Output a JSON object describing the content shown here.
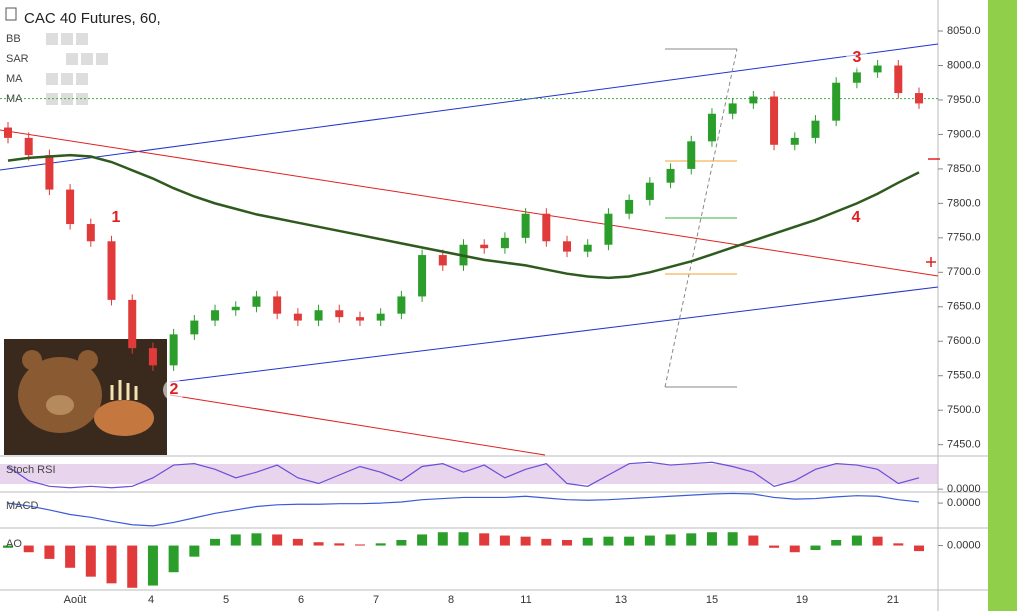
{
  "chart_data": [
    {
      "type": "candlestick",
      "title": "CAC 40 Futures, 60,",
      "indicators": [
        "BB",
        "SAR",
        "MA",
        "MA"
      ],
      "date_labels": [
        "Août",
        "4",
        "5",
        "6",
        "7",
        "8",
        "11",
        "13",
        "15",
        "19",
        "21"
      ],
      "open": [
        7910,
        7895,
        7870,
        7820,
        7770,
        7745,
        7660,
        7590,
        7565,
        7610,
        7630,
        7645,
        7650,
        7665,
        7640,
        7630,
        7645,
        7635,
        7630,
        7640,
        7665,
        7725,
        7710,
        7740,
        7735,
        7750,
        7785,
        7745,
        7730,
        7740,
        7785,
        7805,
        7830,
        7850,
        7890,
        7930,
        7945,
        7955,
        7885,
        7895,
        7920,
        7975,
        7990,
        8000,
        7960
      ],
      "high": [
        7918,
        7903,
        7878,
        7828,
        7778,
        7753,
        7668,
        7598,
        7618,
        7638,
        7653,
        7658,
        7673,
        7673,
        7648,
        7653,
        7653,
        7643,
        7648,
        7673,
        7733,
        7733,
        7748,
        7748,
        7758,
        7793,
        7793,
        7753,
        7748,
        7793,
        7813,
        7838,
        7858,
        7898,
        7938,
        7953,
        7963,
        7963,
        7903,
        7928,
        7983,
        7998,
        8008,
        8008,
        7968
      ],
      "low": [
        7887,
        7862,
        7812,
        7762,
        7737,
        7652,
        7582,
        7557,
        7557,
        7602,
        7622,
        7637,
        7642,
        7632,
        7622,
        7622,
        7627,
        7622,
        7622,
        7632,
        7657,
        7702,
        7702,
        7727,
        7727,
        7742,
        7737,
        7722,
        7722,
        7732,
        7777,
        7797,
        7822,
        7842,
        7882,
        7922,
        7937,
        7877,
        7877,
        7887,
        7912,
        7967,
        7982,
        7952,
        7937
      ],
      "close": [
        7895,
        7870,
        7820,
        7770,
        7745,
        7660,
        7590,
        7565,
        7610,
        7630,
        7645,
        7650,
        7665,
        7640,
        7630,
        7645,
        7635,
        7630,
        7640,
        7665,
        7725,
        7710,
        7740,
        7735,
        7750,
        7785,
        7745,
        7730,
        7740,
        7785,
        7805,
        7830,
        7850,
        7890,
        7930,
        7945,
        7955,
        7885,
        7895,
        7920,
        7975,
        7990,
        8000,
        7960,
        7945
      ],
      "up_color": "#2a9d2a",
      "down_color": "#e03a3a",
      "ma_values": [
        7862,
        7866,
        7868,
        7870,
        7868,
        7860,
        7848,
        7836,
        7822,
        7810,
        7800,
        7792,
        7784,
        7778,
        7772,
        7766,
        7760,
        7754,
        7748,
        7742,
        7736,
        7730,
        7724,
        7718,
        7714,
        7710,
        7704,
        7698,
        7694,
        7692,
        7694,
        7700,
        7708,
        7716,
        7726,
        7736,
        7746,
        7756,
        7766,
        7776,
        7788,
        7800,
        7814,
        7830,
        7845
      ],
      "ma_color": "#2e5a1e",
      "hline": 7952,
      "hline_color": "#3cb043",
      "ylim": [
        7435,
        8095
      ],
      "yticks": [
        {
          "value": 7450,
          "label": "7450.0"
        },
        {
          "value": 7500,
          "label": "7500.0"
        },
        {
          "value": 7550,
          "label": "7550.0"
        },
        {
          "value": 7600,
          "label": "7600.0"
        },
        {
          "value": 7650,
          "label": "7650.0"
        },
        {
          "value": 7700,
          "label": "7700.0"
        },
        {
          "value": 7750,
          "label": "7750.0"
        },
        {
          "value": 7800,
          "label": "7800.0"
        },
        {
          "value": 7850,
          "label": "7850.0"
        },
        {
          "value": 7900,
          "label": "7900.0"
        },
        {
          "value": 7950,
          "label": "7950.0"
        },
        {
          "value": 8000,
          "label": "8000.0"
        },
        {
          "value": 8050,
          "label": "8050.0"
        }
      ],
      "annotations": [
        "1",
        "2",
        "3",
        "4"
      ]
    },
    {
      "type": "line",
      "title": "Stoch RSI",
      "color": "#6a4fd8",
      "values": [
        80,
        30,
        10,
        5,
        10,
        5,
        10,
        40,
        85,
        90,
        70,
        40,
        60,
        85,
        40,
        20,
        50,
        80,
        60,
        30,
        80,
        90,
        60,
        85,
        40,
        70,
        90,
        20,
        10,
        50,
        90,
        95,
        85,
        90,
        95,
        80,
        60,
        10,
        30,
        70,
        90,
        85,
        70,
        20,
        40
      ],
      "ylim": [
        -10,
        110
      ],
      "yticks": [
        {
          "value": 0,
          "label": "0.0000"
        }
      ]
    },
    {
      "type": "line",
      "title": "MACD",
      "color": "#3a5bd8",
      "values": [
        0,
        -5,
        -12,
        -20,
        -25,
        -32,
        -38,
        -40,
        -34,
        -26,
        -18,
        -12,
        -6,
        -3,
        -2,
        -2,
        -1,
        -1,
        0,
        2,
        6,
        8,
        10,
        10,
        10,
        12,
        9,
        6,
        5,
        6,
        8,
        10,
        12,
        14,
        16,
        17,
        16,
        10,
        7,
        8,
        11,
        13,
        12,
        6,
        2
      ],
      "ylim": [
        -42,
        16
      ],
      "yticks": [
        {
          "value": 0,
          "label": "0.0000"
        }
      ]
    },
    {
      "type": "bar",
      "title": "AO",
      "up_color": "#2a9d2a",
      "down_color": "#e03a3a",
      "values": [
        -2,
        -6,
        -12,
        -20,
        -28,
        -34,
        -38,
        -36,
        -24,
        -10,
        6,
        10,
        11,
        10,
        6,
        3,
        2,
        1,
        2,
        5,
        10,
        12,
        12,
        11,
        9,
        8,
        6,
        5,
        7,
        8,
        8,
        9,
        10,
        11,
        12,
        12,
        9,
        -2,
        -6,
        -4,
        5,
        9,
        8,
        2,
        -5
      ],
      "ylim": [
        -40,
        14
      ],
      "yticks": [
        {
          "value": 0,
          "label": "0.0000"
        }
      ]
    }
  ]
}
